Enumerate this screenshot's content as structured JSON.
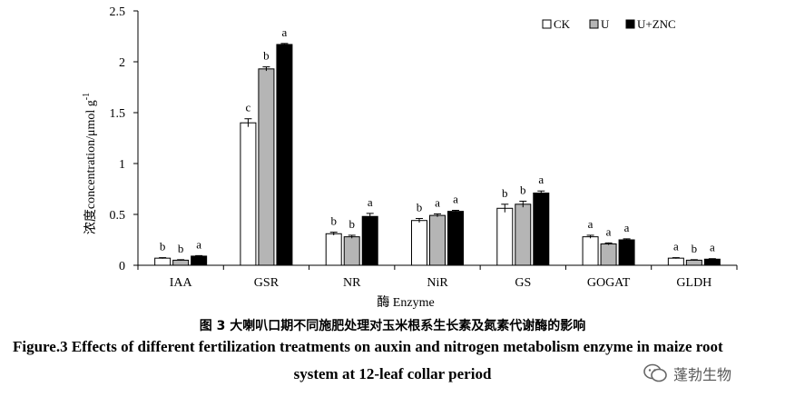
{
  "chart_data": {
    "type": "bar",
    "categories": [
      "IAA",
      "GSR",
      "NR",
      "NiR",
      "GS",
      "GOGAT",
      "GLDH"
    ],
    "series": [
      {
        "name": "CK",
        "color": "#ffffff",
        "values": [
          0.07,
          1.4,
          0.31,
          0.44,
          0.56,
          0.28,
          0.07
        ],
        "errors": [
          0.005,
          0.04,
          0.015,
          0.02,
          0.04,
          0.015,
          0.005
        ],
        "labels": [
          "b",
          "c",
          "b",
          "b",
          "b",
          "a",
          "a"
        ]
      },
      {
        "name": "U",
        "color": "#b5b5b5",
        "values": [
          0.05,
          1.93,
          0.28,
          0.49,
          0.6,
          0.21,
          0.05
        ],
        "errors": [
          0.005,
          0.02,
          0.015,
          0.015,
          0.03,
          0.01,
          0.005
        ],
        "labels": [
          "b",
          "b",
          "b",
          "a",
          "b",
          "a",
          "b"
        ]
      },
      {
        "name": "U+ZNC",
        "color": "#000000",
        "values": [
          0.09,
          2.17,
          0.48,
          0.53,
          0.71,
          0.25,
          0.06
        ],
        "errors": [
          0.005,
          0.01,
          0.03,
          0.01,
          0.02,
          0.01,
          0.005
        ],
        "labels": [
          "a",
          "a",
          "a",
          "a",
          "a",
          "a",
          "a"
        ]
      }
    ],
    "ylabel": "浓度concentration/μmol g-1",
    "ylabel_main": "浓度concentration/μmol g",
    "ylabel_sup": "-1",
    "xlabel": "酶 Enzyme",
    "ylim": [
      0,
      2.5
    ],
    "yticks": [
      "0",
      "0.5",
      "1",
      "1.5",
      "2",
      "2.5"
    ],
    "legend_position": "top-right",
    "grid": false
  },
  "caption": {
    "chinese": "图 3  大喇叭口期不同施肥处理对玉米根系生长素及氮素代谢酶的影响",
    "english_line1": "Figure.3 Effects of different fertilization treatments on auxin and nitrogen metabolism enzyme in maize root",
    "english_line2": "system at 12-leaf collar period"
  },
  "watermark": {
    "text": "蓬勃生物"
  }
}
